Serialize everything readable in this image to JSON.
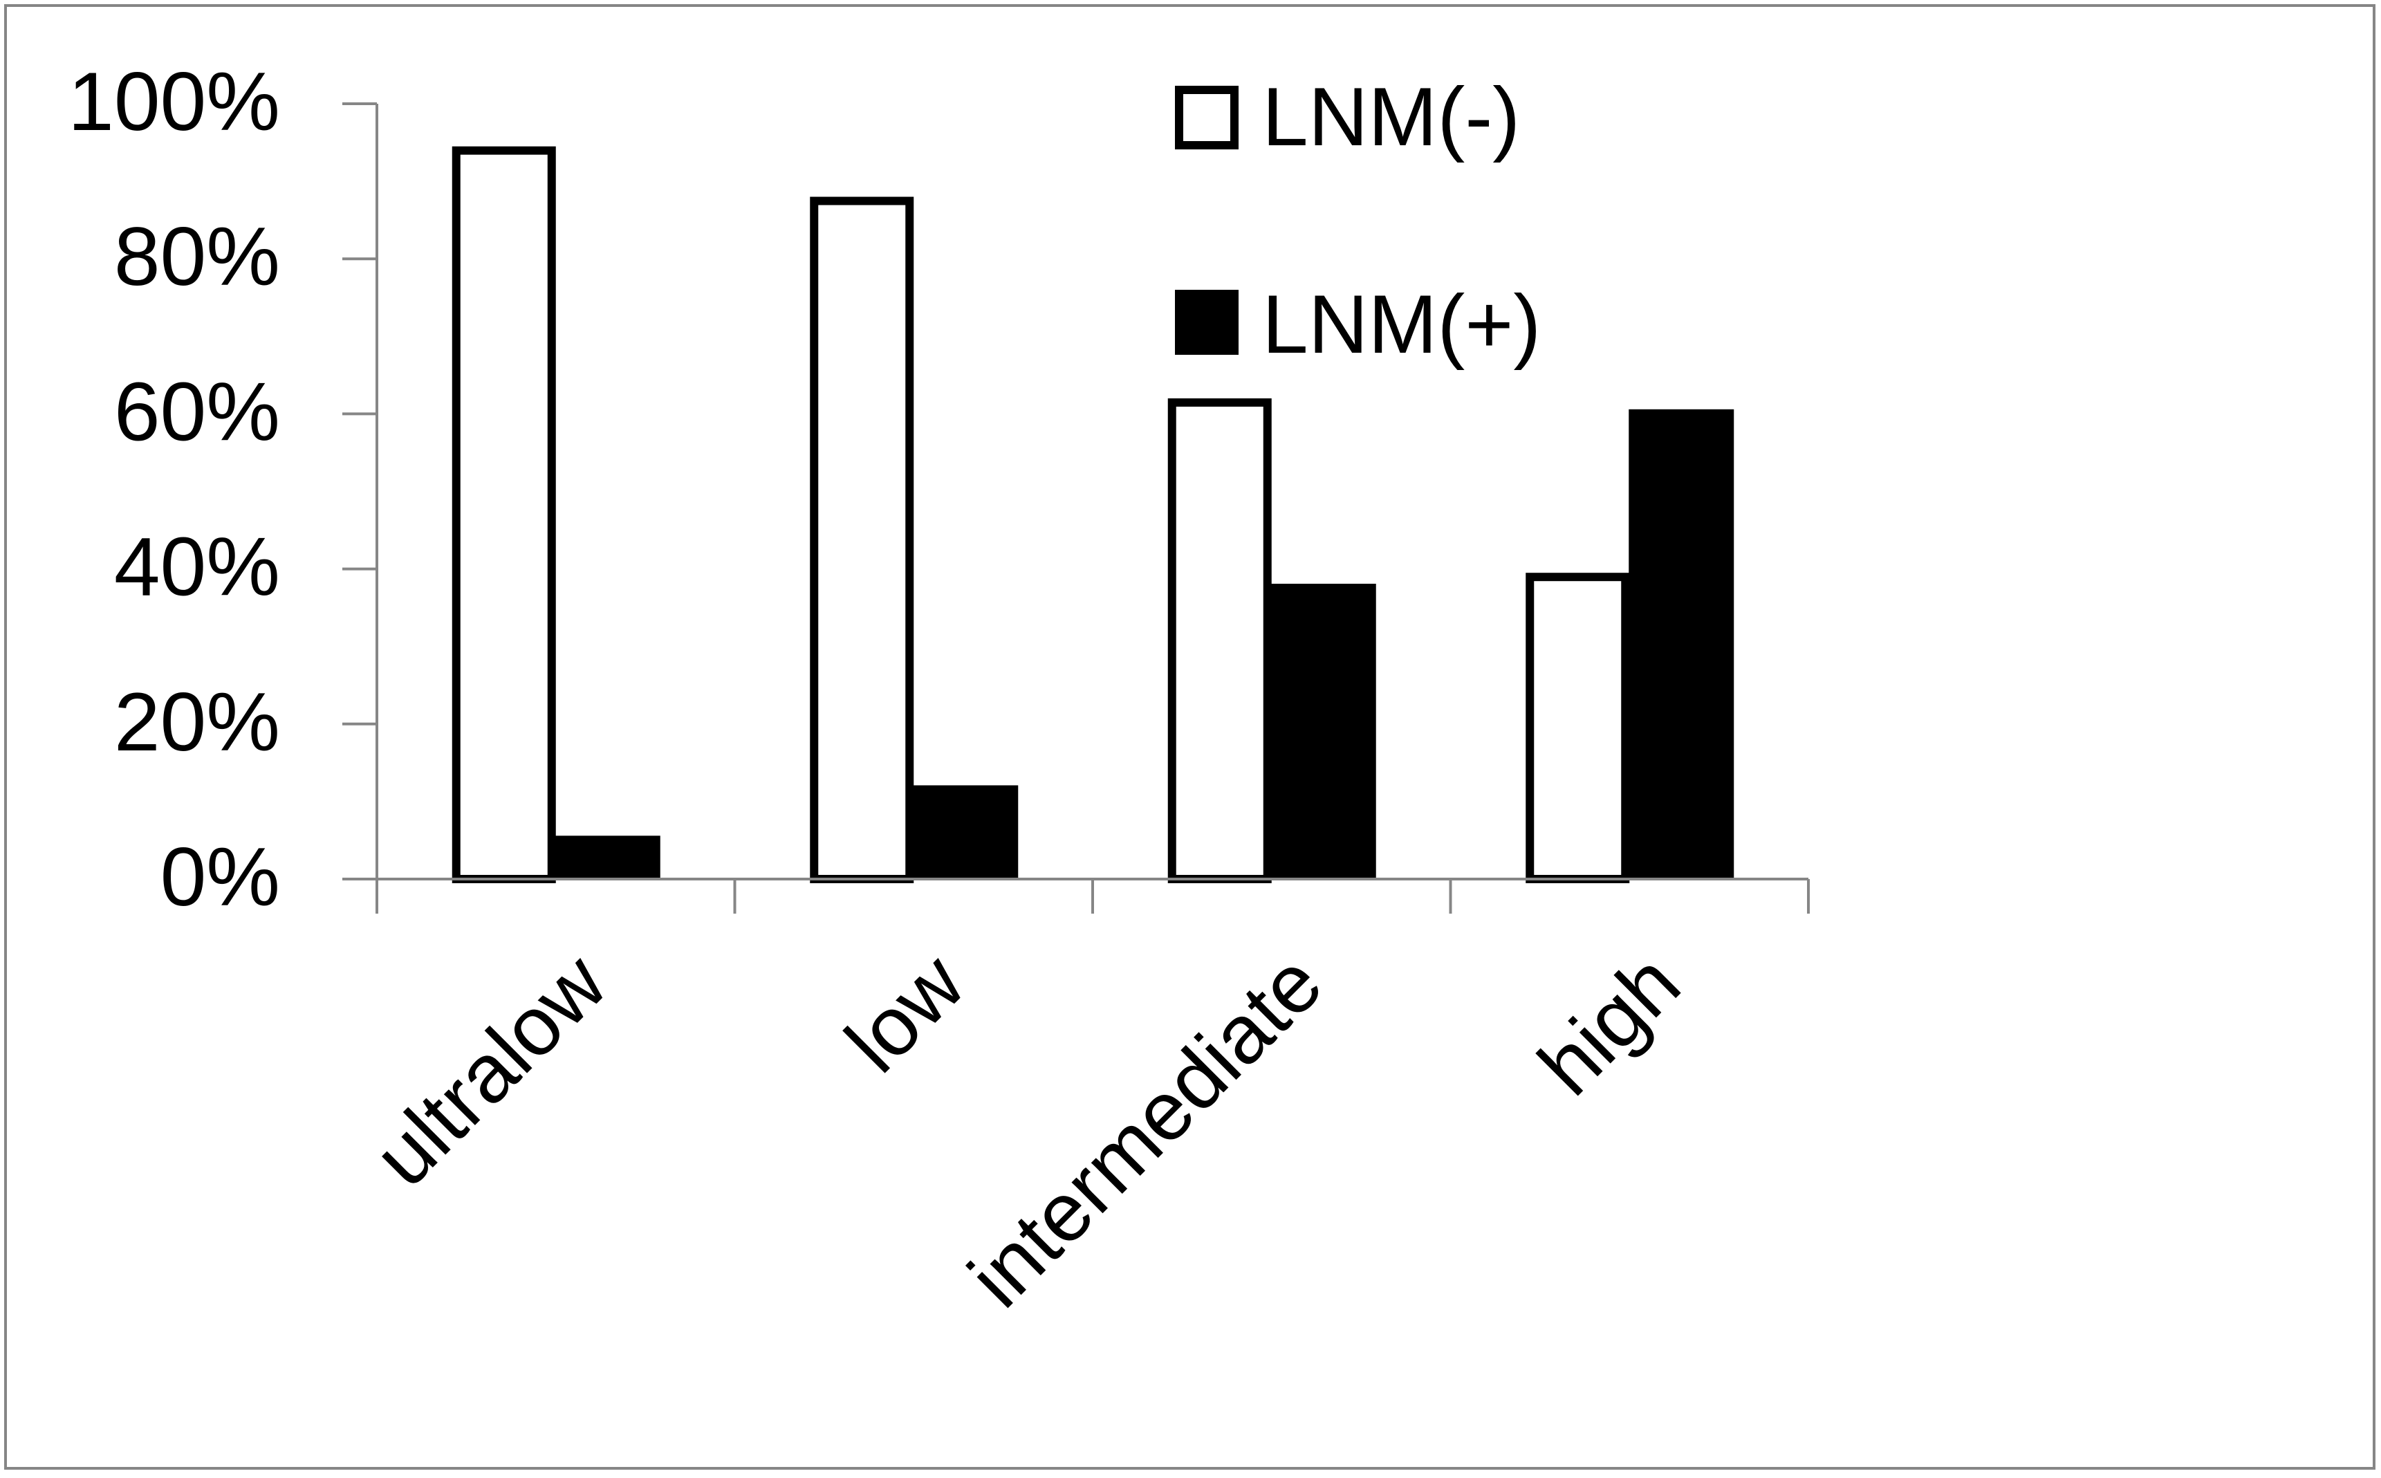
{
  "chart_data": {
    "type": "bar",
    "title": "",
    "xlabel": "",
    "ylabel": "",
    "categories": [
      "ultralow",
      "low",
      "intermediate",
      "high"
    ],
    "series": [
      {
        "name": "LNM(-)",
        "values": [
          94.5,
          88,
          62,
          39.5
        ],
        "fill": "#ffffff",
        "stroke": "#000000"
      },
      {
        "name": "LNM(+)",
        "values": [
          5.5,
          12,
          38,
          60.5
        ],
        "fill": "#000000",
        "stroke": "#000000"
      }
    ],
    "ylim": [
      0,
      100
    ],
    "yticks": [
      0,
      20,
      40,
      60,
      80,
      100
    ],
    "ytick_labels": [
      "0%",
      "20%",
      "40%",
      "60%",
      "80%",
      "100%"
    ],
    "grid": false,
    "legend_position": "top-right",
    "axis_color": "#868686",
    "border_color": "#868686"
  }
}
